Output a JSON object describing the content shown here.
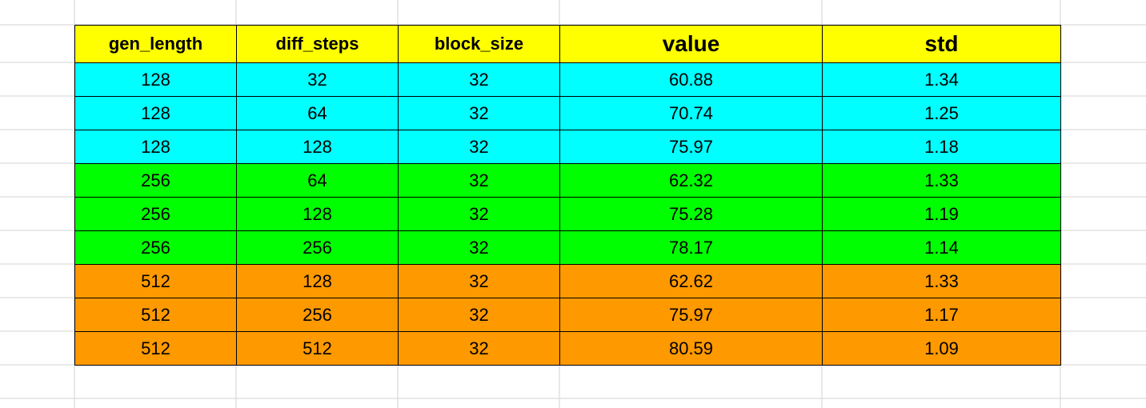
{
  "table": {
    "header": [
      "gen_length",
      "diff_steps",
      "block_size",
      "value",
      "std"
    ],
    "rows": [
      [
        128,
        32,
        32,
        60.88,
        1.34
      ],
      [
        128,
        64,
        32,
        70.74,
        1.25
      ],
      [
        128,
        128,
        32,
        75.97,
        1.18
      ],
      [
        256,
        64,
        32,
        62.32,
        1.33
      ],
      [
        256,
        128,
        32,
        75.28,
        1.19
      ],
      [
        256,
        256,
        32,
        78.17,
        1.14
      ],
      [
        512,
        128,
        32,
        62.62,
        1.33
      ],
      [
        512,
        256,
        32,
        75.97,
        1.17
      ],
      [
        512,
        512,
        32,
        80.59,
        1.09
      ]
    ]
  }
}
